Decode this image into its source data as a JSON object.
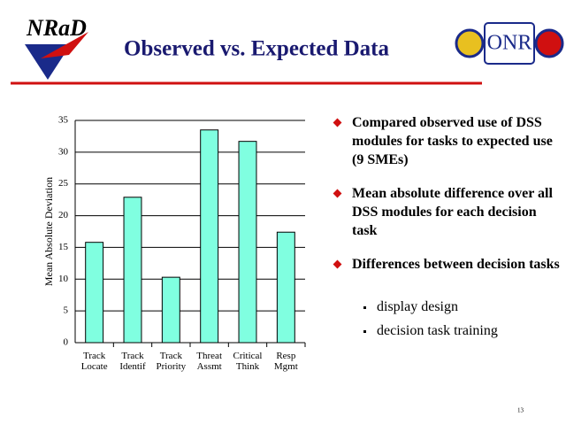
{
  "header": {
    "title": "Observed vs. Expected Data",
    "logo_left": "NRaD",
    "logo_right": "ONR"
  },
  "chart_data": {
    "type": "bar",
    "y_label": "Mean Absolute Deviation",
    "categories": [
      "Track Locate",
      "Track Identif",
      "Track Priority",
      "Threat Assmt",
      "Critical Think",
      "Resp Mgmt"
    ],
    "values": [
      15.8,
      22.9,
      10.3,
      33.5,
      31.7,
      17.4
    ],
    "color": "#80ffe0",
    "ylim": [
      0,
      35
    ],
    "yticks": [
      0,
      5,
      10,
      15,
      20,
      25,
      30,
      35
    ],
    "grid": true
  },
  "bullets": [
    {
      "text": "Compared observed use of DSS modules for tasks to expected use (9 SMEs)"
    },
    {
      "text": "Mean absolute difference over all DSS modules for each decision task"
    },
    {
      "text": "Differences between decision tasks",
      "sub": [
        "display design",
        "decision task training"
      ]
    }
  ],
  "page_number": "13"
}
